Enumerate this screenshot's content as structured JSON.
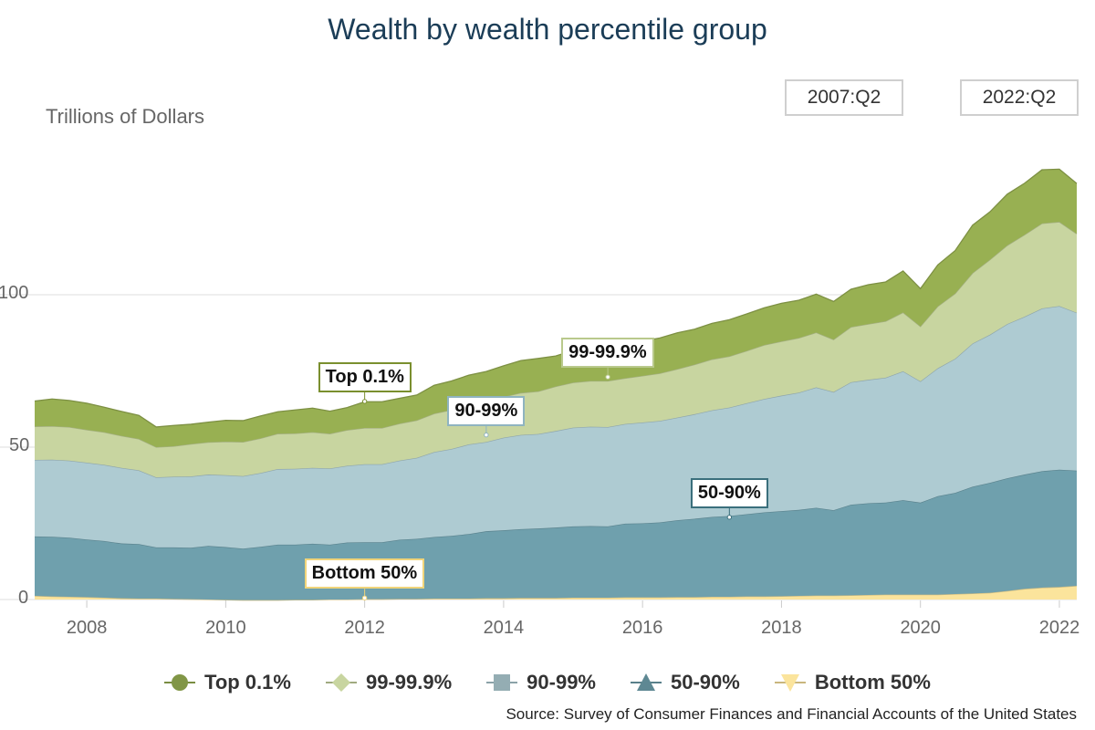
{
  "chart_data": {
    "type": "area",
    "stacked": true,
    "title": "Wealth by wealth percentile group",
    "ylabel": "Trillions of Dollars",
    "xlim": [
      2007.25,
      2022.25
    ],
    "ylim": [
      0,
      140
    ],
    "y_ticks": [
      "0",
      "50",
      "100"
    ],
    "x_ticks": [
      "2008",
      "2010",
      "2012",
      "2014",
      "2016",
      "2018",
      "2020",
      "2022"
    ],
    "range_selector": {
      "start": "2007:Q2",
      "end": "2022:Q2"
    },
    "x": [
      2007.25,
      2007.5,
      2007.75,
      2008.0,
      2008.25,
      2008.5,
      2008.75,
      2009.0,
      2009.25,
      2009.5,
      2009.75,
      2010.0,
      2010.25,
      2010.5,
      2010.75,
      2011.0,
      2011.25,
      2011.5,
      2011.75,
      2012.0,
      2012.25,
      2012.5,
      2012.75,
      2013.0,
      2013.25,
      2013.5,
      2013.75,
      2014.0,
      2014.25,
      2014.5,
      2014.75,
      2015.0,
      2015.25,
      2015.5,
      2015.75,
      2016.0,
      2016.25,
      2016.5,
      2016.75,
      2017.0,
      2017.25,
      2017.5,
      2017.75,
      2018.0,
      2018.25,
      2018.5,
      2018.75,
      2019.0,
      2019.25,
      2019.5,
      2019.75,
      2020.0,
      2020.25,
      2020.5,
      2020.75,
      2021.0,
      2021.25,
      2021.5,
      2021.75,
      2022.0,
      2022.25
    ],
    "series": [
      {
        "name": "Bottom 50%",
        "color": "#fbe49c",
        "marker": "triangle-down",
        "values": [
          1.2,
          1.0,
          0.9,
          0.8,
          0.6,
          0.4,
          0.3,
          0.3,
          0.2,
          0.1,
          0.0,
          -0.1,
          -0.2,
          -0.2,
          -0.2,
          -0.1,
          -0.1,
          0.0,
          0.0,
          0.1,
          0.1,
          0.2,
          0.2,
          0.3,
          0.3,
          0.3,
          0.4,
          0.4,
          0.5,
          0.5,
          0.5,
          0.6,
          0.6,
          0.6,
          0.7,
          0.7,
          0.7,
          0.8,
          0.8,
          0.9,
          0.9,
          1.0,
          1.0,
          1.1,
          1.2,
          1.3,
          1.3,
          1.4,
          1.5,
          1.6,
          1.6,
          1.6,
          1.6,
          1.8,
          2.0,
          2.2,
          2.8,
          3.5,
          3.9,
          4.1,
          4.5
        ]
      },
      {
        "name": "50-90%",
        "color": "#6fa0ad",
        "marker": "triangle-up",
        "values": [
          19.5,
          19.6,
          19.4,
          18.9,
          18.6,
          18.0,
          17.9,
          16.8,
          16.9,
          16.9,
          17.6,
          17.3,
          16.9,
          17.5,
          18.2,
          18.1,
          18.4,
          18.0,
          18.7,
          18.7,
          18.7,
          19.4,
          19.7,
          20.2,
          20.6,
          21.2,
          22.0,
          22.3,
          22.6,
          22.8,
          23.1,
          23.4,
          23.5,
          23.4,
          24.2,
          24.3,
          24.6,
          25.2,
          25.7,
          26.2,
          26.5,
          27.0,
          27.6,
          27.9,
          28.2,
          28.8,
          28.0,
          29.7,
          30.1,
          30.2,
          31.0,
          30.2,
          32.3,
          33.2,
          35.0,
          36.1,
          37.0,
          37.5,
          38.2,
          38.5,
          37.8
        ]
      },
      {
        "name": "90-99%",
        "color": "#aecbd2",
        "marker": "square",
        "values": [
          25.1,
          25.3,
          25.3,
          25.2,
          25.0,
          24.8,
          24.2,
          23.0,
          23.2,
          23.4,
          23.4,
          23.6,
          23.8,
          24.2,
          24.8,
          24.9,
          24.9,
          25.0,
          25.2,
          25.6,
          25.6,
          26.0,
          26.6,
          27.9,
          28.5,
          29.4,
          29.3,
          30.4,
          30.9,
          31.0,
          31.7,
          32.4,
          32.6,
          32.6,
          32.7,
          33.1,
          33.3,
          33.7,
          34.3,
          35.0,
          35.6,
          36.4,
          37.2,
          37.9,
          38.5,
          39.5,
          38.8,
          40.2,
          40.5,
          41.0,
          42.3,
          39.8,
          42.0,
          44.0,
          47.0,
          48.6,
          50.6,
          51.8,
          53.4,
          53.7,
          51.8
        ]
      },
      {
        "name": "99-99.9%",
        "color": "#c8d5a0",
        "marker": "diamond",
        "values": [
          11.0,
          11.0,
          11.0,
          10.8,
          10.7,
          10.5,
          10.3,
          9.9,
          10.0,
          10.6,
          10.6,
          11.0,
          11.2,
          11.4,
          11.6,
          11.6,
          11.7,
          11.4,
          11.7,
          11.9,
          11.9,
          12.1,
          12.3,
          12.6,
          12.8,
          13.0,
          13.3,
          13.4,
          13.8,
          14.0,
          14.6,
          14.8,
          15.0,
          15.1,
          15.0,
          15.3,
          15.6,
          15.9,
          16.3,
          16.7,
          16.8,
          17.2,
          17.7,
          17.8,
          17.9,
          18.0,
          17.2,
          18.1,
          18.3,
          18.5,
          19.3,
          18.0,
          20.3,
          21.4,
          23.1,
          24.6,
          25.8,
          26.9,
          27.9,
          27.6,
          25.9
        ]
      },
      {
        "name": "Top 0.1%",
        "color": "#98b052",
        "marker": "circle",
        "values": [
          8.3,
          8.9,
          8.7,
          8.7,
          8.2,
          8.0,
          7.7,
          6.6,
          6.8,
          6.5,
          6.6,
          7.0,
          7.0,
          7.3,
          7.2,
          7.7,
          7.9,
          7.4,
          7.4,
          8.6,
          8.6,
          8.3,
          8.3,
          9.3,
          9.5,
          9.7,
          9.8,
          10.2,
          10.6,
          10.8,
          10.0,
          10.5,
          10.9,
          11.1,
          11.3,
          11.4,
          11.6,
          11.9,
          11.6,
          11.8,
          12.0,
          12.1,
          12.2,
          12.5,
          12.4,
          12.6,
          12.5,
          12.4,
          12.9,
          12.9,
          13.6,
          12.4,
          13.6,
          14.1,
          15.7,
          15.7,
          16.8,
          16.9,
          17.6,
          17.3,
          16.5
        ]
      }
    ],
    "annotations": [
      {
        "label": "Top 0.1%",
        "x": 2012.0,
        "y": 65,
        "border": "#7a8f2e"
      },
      {
        "label": "99-99.9%",
        "x": 2015.5,
        "y": 73,
        "border": "#b9c98c"
      },
      {
        "label": "90-99%",
        "x": 2013.75,
        "y": 54,
        "border": "#8fb4c0"
      },
      {
        "label": "50-90%",
        "x": 2017.25,
        "y": 27,
        "border": "#3a6f7c"
      },
      {
        "label": "Bottom 50%",
        "x": 2012.0,
        "y": 0.5,
        "border": "#f0d47a"
      }
    ],
    "grid": "horizontal",
    "legend": "bottom",
    "source": "Source: Survey of Consumer Finances and Financial Accounts of the United States"
  }
}
